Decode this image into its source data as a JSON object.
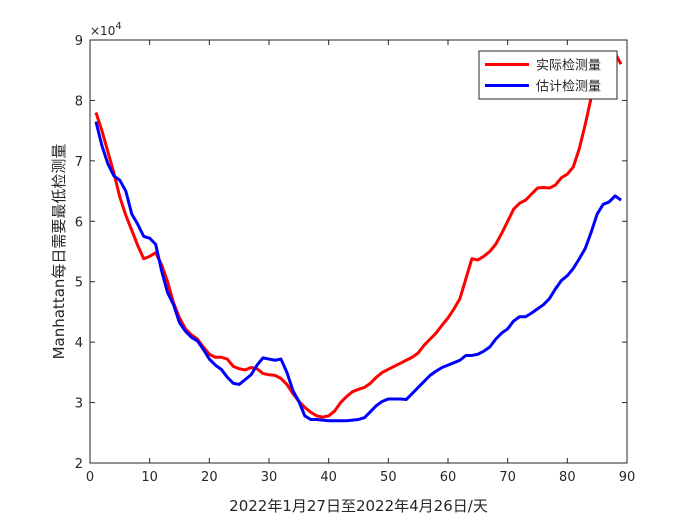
{
  "chart_data": {
    "type": "line",
    "xlabel": "2022年1月27日至2022年4月26日/天",
    "ylabel": "Manhattan每日需要最低检测量",
    "exponent_label": "×10^4",
    "xlim": [
      0,
      90
    ],
    "ylim": [
      2,
      9
    ],
    "xticks": [
      0,
      10,
      20,
      30,
      40,
      50,
      60,
      70,
      80,
      90
    ],
    "yticks": [
      2,
      3,
      4,
      5,
      6,
      7,
      8,
      9
    ],
    "yscale": 10000,
    "grid": false,
    "legend_position": "top-right",
    "series": [
      {
        "name": "实际检测量",
        "color": "#ff0000",
        "points": [
          [
            1,
            7.8
          ],
          [
            2,
            7.5
          ],
          [
            3,
            7.15
          ],
          [
            4,
            6.8
          ],
          [
            5,
            6.4
          ],
          [
            6,
            6.1
          ],
          [
            7,
            5.85
          ],
          [
            8,
            5.6
          ],
          [
            9,
            5.38
          ],
          [
            10,
            5.42
          ],
          [
            11,
            5.48
          ],
          [
            12,
            5.28
          ],
          [
            13,
            5.0
          ],
          [
            14,
            4.65
          ],
          [
            15,
            4.4
          ],
          [
            16,
            4.22
          ],
          [
            17,
            4.12
          ],
          [
            18,
            4.05
          ],
          [
            19,
            3.92
          ],
          [
            20,
            3.8
          ],
          [
            21,
            3.75
          ],
          [
            22,
            3.75
          ],
          [
            23,
            3.72
          ],
          [
            24,
            3.6
          ],
          [
            25,
            3.56
          ],
          [
            26,
            3.54
          ],
          [
            27,
            3.58
          ],
          [
            28,
            3.56
          ],
          [
            29,
            3.48
          ],
          [
            30,
            3.46
          ],
          [
            31,
            3.45
          ],
          [
            32,
            3.4
          ],
          [
            33,
            3.3
          ],
          [
            34,
            3.15
          ],
          [
            35,
            3.02
          ],
          [
            36,
            2.92
          ],
          [
            37,
            2.84
          ],
          [
            38,
            2.78
          ],
          [
            39,
            2.76
          ],
          [
            40,
            2.78
          ],
          [
            41,
            2.86
          ],
          [
            42,
            3.0
          ],
          [
            43,
            3.1
          ],
          [
            44,
            3.18
          ],
          [
            45,
            3.22
          ],
          [
            46,
            3.25
          ],
          [
            47,
            3.32
          ],
          [
            48,
            3.42
          ],
          [
            49,
            3.5
          ],
          [
            50,
            3.55
          ],
          [
            51,
            3.6
          ],
          [
            52,
            3.65
          ],
          [
            53,
            3.7
          ],
          [
            54,
            3.75
          ],
          [
            55,
            3.82
          ],
          [
            56,
            3.95
          ],
          [
            57,
            4.05
          ],
          [
            58,
            4.15
          ],
          [
            59,
            4.28
          ],
          [
            60,
            4.4
          ],
          [
            61,
            4.55
          ],
          [
            62,
            4.72
          ],
          [
            63,
            5.05
          ],
          [
            64,
            5.38
          ],
          [
            65,
            5.36
          ],
          [
            66,
            5.42
          ],
          [
            67,
            5.5
          ],
          [
            68,
            5.62
          ],
          [
            69,
            5.8
          ],
          [
            70,
            6.0
          ],
          [
            71,
            6.2
          ],
          [
            72,
            6.3
          ],
          [
            73,
            6.35
          ],
          [
            74,
            6.45
          ],
          [
            75,
            6.55
          ],
          [
            76,
            6.56
          ],
          [
            77,
            6.55
          ],
          [
            78,
            6.6
          ],
          [
            79,
            6.72
          ],
          [
            80,
            6.78
          ],
          [
            81,
            6.9
          ],
          [
            82,
            7.2
          ],
          [
            83,
            7.6
          ],
          [
            84,
            8.05
          ],
          [
            85,
            8.42
          ],
          [
            86,
            8.62
          ],
          [
            87,
            8.75
          ],
          [
            88,
            8.78
          ],
          [
            89,
            8.6
          ]
        ]
      },
      {
        "name": "估计检测量",
        "color": "#0000ff",
        "points": [
          [
            1,
            7.65
          ],
          [
            2,
            7.25
          ],
          [
            3,
            6.95
          ],
          [
            4,
            6.75
          ],
          [
            5,
            6.68
          ],
          [
            6,
            6.5
          ],
          [
            7,
            6.12
          ],
          [
            8,
            5.95
          ],
          [
            9,
            5.75
          ],
          [
            10,
            5.72
          ],
          [
            11,
            5.62
          ],
          [
            12,
            5.18
          ],
          [
            13,
            4.82
          ],
          [
            14,
            4.62
          ],
          [
            15,
            4.32
          ],
          [
            16,
            4.18
          ],
          [
            17,
            4.08
          ],
          [
            18,
            4.02
          ],
          [
            19,
            3.88
          ],
          [
            20,
            3.72
          ],
          [
            21,
            3.62
          ],
          [
            22,
            3.55
          ],
          [
            23,
            3.42
          ],
          [
            24,
            3.32
          ],
          [
            25,
            3.3
          ],
          [
            26,
            3.38
          ],
          [
            27,
            3.46
          ],
          [
            28,
            3.62
          ],
          [
            29,
            3.74
          ],
          [
            30,
            3.72
          ],
          [
            31,
            3.7
          ],
          [
            32,
            3.72
          ],
          [
            33,
            3.5
          ],
          [
            34,
            3.2
          ],
          [
            35,
            3.02
          ],
          [
            36,
            2.78
          ],
          [
            37,
            2.72
          ],
          [
            38,
            2.72
          ],
          [
            39,
            2.71
          ],
          [
            40,
            2.7
          ],
          [
            41,
            2.7
          ],
          [
            42,
            2.7
          ],
          [
            43,
            2.7
          ],
          [
            44,
            2.71
          ],
          [
            45,
            2.72
          ],
          [
            46,
            2.75
          ],
          [
            47,
            2.85
          ],
          [
            48,
            2.95
          ],
          [
            49,
            3.02
          ],
          [
            50,
            3.06
          ],
          [
            51,
            3.06
          ],
          [
            52,
            3.06
          ],
          [
            53,
            3.05
          ],
          [
            54,
            3.15
          ],
          [
            55,
            3.25
          ],
          [
            56,
            3.35
          ],
          [
            57,
            3.45
          ],
          [
            58,
            3.52
          ],
          [
            59,
            3.58
          ],
          [
            60,
            3.62
          ],
          [
            61,
            3.66
          ],
          [
            62,
            3.7
          ],
          [
            63,
            3.78
          ],
          [
            64,
            3.78
          ],
          [
            65,
            3.8
          ],
          [
            66,
            3.85
          ],
          [
            67,
            3.92
          ],
          [
            68,
            4.05
          ],
          [
            69,
            4.15
          ],
          [
            70,
            4.22
          ],
          [
            71,
            4.35
          ],
          [
            72,
            4.42
          ],
          [
            73,
            4.42
          ],
          [
            74,
            4.48
          ],
          [
            75,
            4.55
          ],
          [
            76,
            4.62
          ],
          [
            77,
            4.72
          ],
          [
            78,
            4.88
          ],
          [
            79,
            5.02
          ],
          [
            80,
            5.1
          ],
          [
            81,
            5.22
          ],
          [
            82,
            5.38
          ],
          [
            83,
            5.55
          ],
          [
            84,
            5.82
          ],
          [
            85,
            6.12
          ],
          [
            86,
            6.28
          ],
          [
            87,
            6.32
          ],
          [
            88,
            6.42
          ],
          [
            89,
            6.35
          ]
        ]
      }
    ]
  }
}
